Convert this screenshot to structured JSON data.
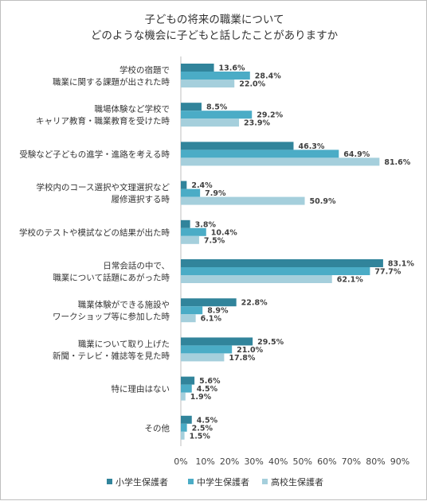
{
  "title_lines": [
    "子どもの将来の職業について",
    "どのような機会に子どもと話したことがありますか"
  ],
  "chart_data": {
    "type": "bar",
    "orientation": "horizontal",
    "title": "子どもの将来の職業について どのような機会に子どもと話したことがありますか",
    "categories": [
      [
        "学校の宿題で",
        "職業に関する課題が出された時"
      ],
      [
        "職場体験など学校で",
        "キャリア教育・職業教育を受けた時"
      ],
      [
        "受験など子どもの進学・進路を考える時"
      ],
      [
        "学校内のコース選択や文理選択など",
        "履修選択する時"
      ],
      [
        "学校のテストや模試などの結果が出た時"
      ],
      [
        "日常会話の中で、",
        "職業について話題にあがった時"
      ],
      [
        "職業体験ができる施設や",
        "ワークショップ等に参加した時"
      ],
      [
        "職業について取り上げた",
        "新聞・テレビ・雑誌等を見た時"
      ],
      [
        "特に理由はない"
      ],
      [
        "その他"
      ]
    ],
    "series": [
      {
        "name": "小学生保護者",
        "color": "#31849b",
        "values": [
          13.6,
          8.5,
          46.3,
          2.4,
          3.8,
          83.1,
          22.8,
          29.5,
          5.6,
          4.5
        ]
      },
      {
        "name": "中学生保護者",
        "color": "#4bacc6",
        "values": [
          28.4,
          29.2,
          64.9,
          7.9,
          10.4,
          77.7,
          8.9,
          21.0,
          4.5,
          2.5
        ]
      },
      {
        "name": "高校生保護者",
        "color": "#a5cfdc",
        "values": [
          22.0,
          23.9,
          81.6,
          50.9,
          7.5,
          62.1,
          6.1,
          17.8,
          1.9,
          1.5
        ]
      }
    ],
    "xlim": [
      0,
      90
    ],
    "xticks": [
      "0%",
      "10%",
      "20%",
      "30%",
      "40%",
      "50%",
      "60%",
      "70%",
      "80%",
      "90%"
    ],
    "value_suffix": "%",
    "grid": false,
    "legend_position": "bottom"
  }
}
